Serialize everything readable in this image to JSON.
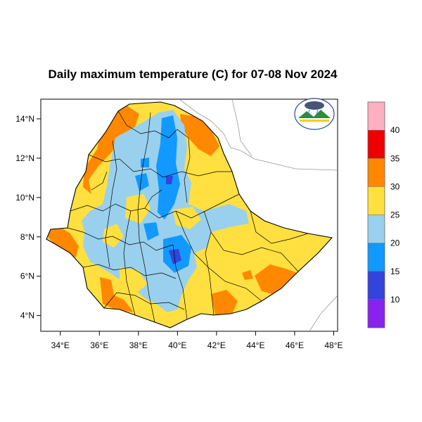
{
  "title": "Daily maximum temperature (C) for 07-08 Nov 2024",
  "map": {
    "lon_ticks": [
      "34°E",
      "36°E",
      "38°E",
      "40°E",
      "42°E",
      "44°E",
      "46°E",
      "48°E"
    ],
    "lat_ticks": [
      "14°N",
      "12°N",
      "10°N",
      "8°N",
      "6°N",
      "4°N"
    ],
    "lon_range": [
      33,
      48.2
    ],
    "lat_range": [
      3.2,
      15
    ]
  },
  "legend": {
    "labels": [
      "40",
      "35",
      "30",
      "25",
      "20",
      "15",
      "10"
    ],
    "colors": [
      "#ffb0c0",
      "#ee0000",
      "#ff8800",
      "#ffe040",
      "#99d0ee",
      "#1199ff",
      "#3344dd",
      "#8822ee"
    ]
  },
  "colors": {
    "warm": "#ffe040",
    "hot": "#ff8800",
    "cool": "#99d0ee",
    "cold": "#1199ff",
    "colder": "#3344dd",
    "coldest": "#8822ee"
  },
  "logo_icon": "ethiopia-meteorology-institute-logo"
}
